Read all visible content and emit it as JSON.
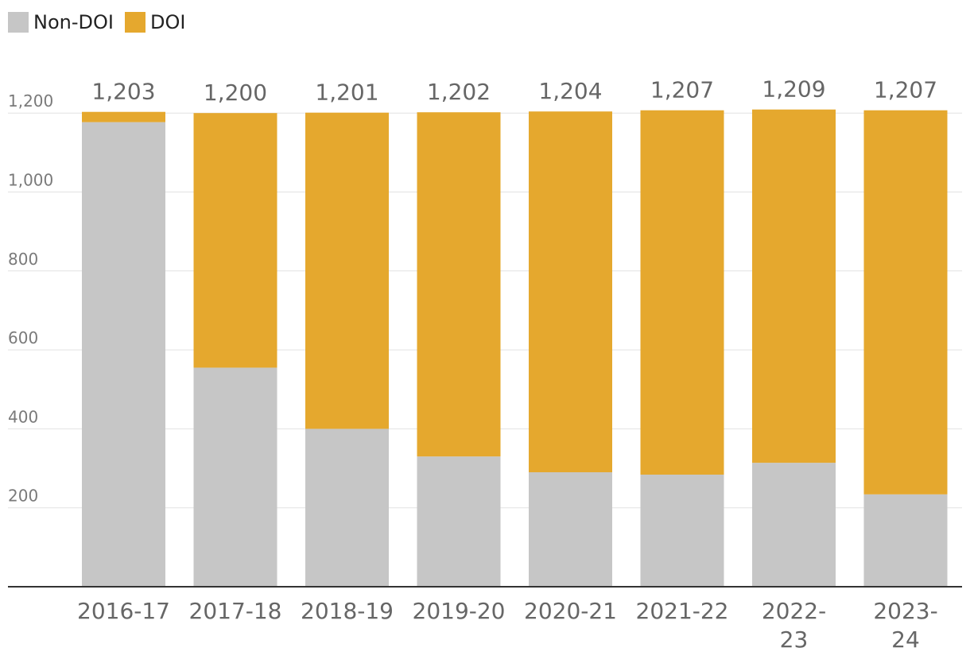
{
  "legend": {
    "items": [
      {
        "label": "Non-DOI",
        "color": "#c6c6c6"
      },
      {
        "label": "DOI",
        "color": "#e5a82e"
      }
    ]
  },
  "chart_data": {
    "type": "bar",
    "stacked": true,
    "categories": [
      "2016-17",
      "2017-18",
      "2018-19",
      "2019-20",
      "2020-21",
      "2021-22",
      "2022-23",
      "2023-24"
    ],
    "series": [
      {
        "name": "Non-DOI",
        "color": "#c6c6c6",
        "values": [
          1177,
          555,
          400,
          330,
          290,
          284,
          314,
          234
        ]
      },
      {
        "name": "DOI",
        "color": "#e5a82e",
        "values": [
          26,
          645,
          801,
          872,
          914,
          923,
          895,
          973
        ]
      }
    ],
    "totals": [
      "1,203",
      "1,200",
      "1,201",
      "1,202",
      "1,204",
      "1,207",
      "1,209",
      "1,207"
    ],
    "yticks": [
      {
        "value": 200,
        "label": "200"
      },
      {
        "value": 400,
        "label": "400"
      },
      {
        "value": 600,
        "label": "600"
      },
      {
        "value": 800,
        "label": "800"
      },
      {
        "value": 1000,
        "label": "1,000"
      },
      {
        "value": 1200,
        "label": "1,200"
      }
    ],
    "ylim": [
      0,
      1200
    ],
    "grid": true,
    "legend_position": "top-left"
  }
}
